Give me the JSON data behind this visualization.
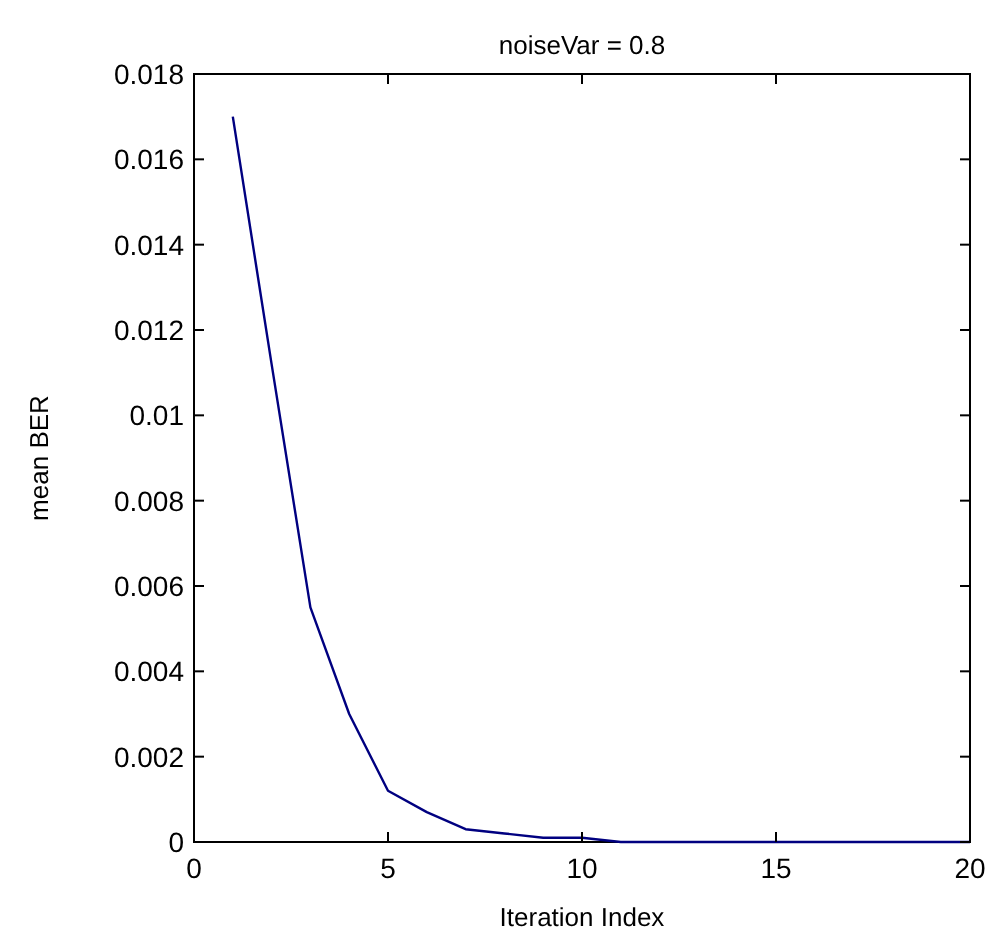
{
  "chart_data": {
    "type": "line",
    "title": "noiseVar = 0.8",
    "xlabel": "Iteration Index",
    "ylabel": "mean BER",
    "x": [
      1,
      2,
      3,
      4,
      5,
      6,
      7,
      8,
      9,
      10,
      11,
      12,
      13,
      14,
      15,
      16,
      17,
      18,
      19,
      20
    ],
    "series": [
      {
        "color": "#000080",
        "values": [
          0.017,
          0.0112,
          0.0055,
          0.003,
          0.0012,
          0.0007,
          0.0003,
          0.0002,
          0.0001,
          0.0001,
          0,
          0,
          0,
          0,
          0,
          0,
          0,
          0,
          0,
          0
        ]
      }
    ],
    "xlim": [
      0,
      20
    ],
    "xticks": [
      0,
      5,
      10,
      15,
      20
    ],
    "ylim": [
      0,
      0.018
    ],
    "yticks": [
      0,
      0.002,
      0.004,
      0.006,
      0.008,
      0.01,
      0.012,
      0.014,
      0.016,
      0.018
    ],
    "grid": false,
    "marker": "none",
    "line_style": "solid"
  }
}
